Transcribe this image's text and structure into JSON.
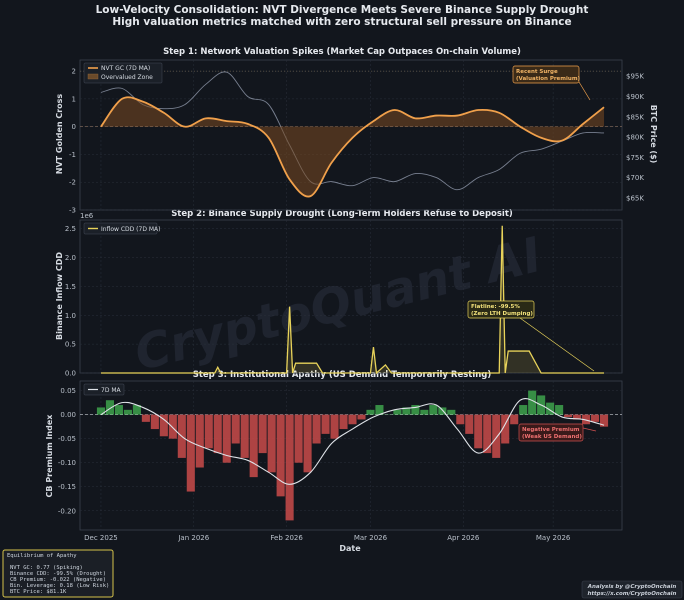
{
  "figure": {
    "title": "Low-Velocity Consolidation: NVT Divergence Meets Severe Binance Supply Drought",
    "subtitle": "High valuation metrics matched with zero structural sell pressure on Binance",
    "watermark": "CryptoQuant AI",
    "credit_line1": "Analysis by @CryptoOnchain",
    "credit_line2": "https://x.com/CryptoOnchain",
    "xlabel": "Date",
    "colors": {
      "background": "#12161d",
      "nvt": "#f0a04b",
      "btc": "#8a92a3",
      "cdd": "#e8d35a",
      "cb_pos": "#3c9b4a",
      "cb_neg": "#c04848",
      "grid": "#2a303b"
    }
  },
  "info_box": {
    "title": "Equilibrium of Apathy",
    "lines": [
      "NVT GC:         0.77 (Spiking)",
      "Binance CDD:  -99.5% (Drought)",
      "CB Premium:   -0.022 (Negative)",
      "Bin. Leverage: 0.18 (Low Risk)",
      "BTC Price:    $81.1K"
    ]
  },
  "chart_data": [
    {
      "type": "area",
      "title": "Step 1: Network Valuation Spikes (Market Cap Outpaces On-chain Volume)",
      "ylabel": "NVT Golden Cross",
      "y2label": "BTC Price ($)",
      "ylim": [
        -3,
        2.4
      ],
      "y2lim": [
        62,
        99
      ],
      "yticks": [
        -3,
        -2,
        -1,
        0,
        1,
        2
      ],
      "y2ticks": [
        "$65K",
        "$70K",
        "$75K",
        "$80K",
        "$85K",
        "$90K",
        "$95K"
      ],
      "y2tick_values": [
        65,
        70,
        75,
        80,
        85,
        90,
        95
      ],
      "overvalued_level": 2.0,
      "legend_position": "top-left",
      "series": [
        {
          "name": "NVT GC (7D MA)",
          "type": "line",
          "x": [
            "2025-12-01",
            "2025-12-08",
            "2025-12-15",
            "2025-12-22",
            "2025-12-29",
            "2026-01-05",
            "2026-01-12",
            "2026-01-19",
            "2026-01-26",
            "2026-02-02",
            "2026-02-09",
            "2026-02-16",
            "2026-02-23",
            "2026-03-02",
            "2026-03-09",
            "2026-03-16",
            "2026-03-23",
            "2026-03-30",
            "2026-04-06",
            "2026-04-13",
            "2026-04-20",
            "2026-04-27",
            "2026-05-04",
            "2026-05-11",
            "2026-05-18"
          ],
          "values": [
            0.0,
            1.0,
            0.9,
            0.5,
            0.0,
            0.3,
            0.2,
            0.1,
            -0.4,
            -1.9,
            -2.5,
            -1.3,
            -0.4,
            0.2,
            0.6,
            0.3,
            0.4,
            0.4,
            0.6,
            0.5,
            0.0,
            -0.4,
            -0.5,
            0.1,
            0.7
          ]
        },
        {
          "name": "",
          "type": "line",
          "axis": "right",
          "unit": "$K",
          "x": [
            "2025-12-01",
            "2025-12-08",
            "2025-12-15",
            "2025-12-22",
            "2025-12-29",
            "2026-01-05",
            "2026-01-12",
            "2026-01-19",
            "2026-01-26",
            "2026-02-02",
            "2026-02-09",
            "2026-02-16",
            "2026-02-23",
            "2026-03-02",
            "2026-03-09",
            "2026-03-16",
            "2026-03-23",
            "2026-03-30",
            "2026-04-06",
            "2026-04-13",
            "2026-04-20",
            "2026-04-27",
            "2026-05-04",
            "2026-05-11",
            "2026-05-18"
          ],
          "values": [
            91,
            92,
            88,
            87,
            88,
            93,
            96,
            90,
            88,
            78,
            69,
            69,
            68,
            70,
            69,
            71,
            70,
            67,
            70,
            72,
            76,
            77,
            79,
            81,
            81
          ]
        }
      ],
      "legend_extra": "Overvalued Zone",
      "annotation": {
        "text_line1": "Recent Surge",
        "text_line2": "(Valuation Premium)",
        "x": "2026-05-16",
        "y": 0.7
      }
    },
    {
      "type": "line",
      "title": "Step 2: Binance Supply Drought (Long-Term Holders Refuse to Deposit)",
      "ylabel": "Binance Inflow CDD",
      "yscale_label": "1e6",
      "ylim": [
        0,
        2.65
      ],
      "yticks": [
        "0.0",
        "0.5",
        "1.0",
        "1.5",
        "2.0",
        "2.5"
      ],
      "ytick_values": [
        0,
        0.5,
        1.0,
        1.5,
        2.0,
        2.5
      ],
      "legend_position": "top-left",
      "series": [
        {
          "name": "Inflow CDD (7D MA)",
          "x": [
            "2025-12-01",
            "2026-01-08",
            "2026-01-09",
            "2026-01-10",
            "2026-02-01",
            "2026-02-02",
            "2026-02-03",
            "2026-02-04",
            "2026-02-11",
            "2026-02-13",
            "2026-03-01",
            "2026-03-02",
            "2026-03-03",
            "2026-03-06",
            "2026-03-08",
            "2026-04-13",
            "2026-04-14",
            "2026-04-15",
            "2026-04-16",
            "2026-04-23",
            "2026-04-27",
            "2026-05-18"
          ],
          "values": [
            0.0,
            0.0,
            0.1,
            0.0,
            0.0,
            1.15,
            0.0,
            0.17,
            0.17,
            0.0,
            0.0,
            0.45,
            0.0,
            0.14,
            0.0,
            0.0,
            2.55,
            0.0,
            0.38,
            0.38,
            0.0,
            0.0
          ]
        }
      ],
      "annotation": {
        "text_line1": "Flatline: -99.5%",
        "text_line2": "(Zero LTH Dumping)",
        "x": "2026-05-14",
        "y": 0.02
      }
    },
    {
      "type": "bar",
      "title": "Step 3: Institutional Apathy (US Demand Temporarily Resting)",
      "ylabel": "CB Premium Index",
      "xlabel": "Date",
      "ylim": [
        -0.24,
        0.07
      ],
      "yticks": [
        "-0.20",
        "-0.15",
        "-0.10",
        "-0.05",
        "0.00",
        "0.05"
      ],
      "ytick_values": [
        -0.2,
        -0.15,
        -0.1,
        -0.05,
        0.0,
        0.05
      ],
      "xticks": [
        "Dec 2025",
        "Jan 2026",
        "Feb 2026",
        "Mar 2026",
        "Apr 2026",
        "May 2026"
      ],
      "xtick_dates": [
        "2025-12-01",
        "2026-01-01",
        "2026-02-01",
        "2026-03-01",
        "2026-04-01",
        "2026-05-01"
      ],
      "legend_position": "top-left",
      "series": [
        {
          "name": "7D MA",
          "type": "line",
          "x": [
            "2025-12-01",
            "2025-12-08",
            "2025-12-15",
            "2025-12-22",
            "2025-12-29",
            "2026-01-05",
            "2026-01-12",
            "2026-01-19",
            "2026-01-26",
            "2026-02-02",
            "2026-02-09",
            "2026-02-16",
            "2026-02-23",
            "2026-03-02",
            "2026-03-09",
            "2026-03-16",
            "2026-03-23",
            "2026-03-30",
            "2026-04-06",
            "2026-04-13",
            "2026-04-20",
            "2026-04-27",
            "2026-05-04",
            "2026-05-11",
            "2026-05-18"
          ],
          "values": [
            0.0,
            0.025,
            0.015,
            -0.01,
            -0.05,
            -0.07,
            -0.085,
            -0.095,
            -0.12,
            -0.145,
            -0.12,
            -0.06,
            -0.03,
            -0.005,
            0.01,
            0.015,
            0.02,
            -0.03,
            -0.08,
            -0.04,
            0.03,
            0.02,
            -0.005,
            -0.01,
            -0.022
          ]
        },
        {
          "name": "",
          "type": "bar",
          "unit": "daily",
          "x": [
            "2025-12-01",
            "2025-12-04",
            "2025-12-07",
            "2025-12-10",
            "2025-12-13",
            "2025-12-16",
            "2025-12-19",
            "2025-12-22",
            "2025-12-25",
            "2025-12-28",
            "2025-12-31",
            "2026-01-03",
            "2026-01-06",
            "2026-01-09",
            "2026-01-12",
            "2026-01-15",
            "2026-01-18",
            "2026-01-21",
            "2026-01-24",
            "2026-01-27",
            "2026-01-30",
            "2026-02-02",
            "2026-02-05",
            "2026-02-08",
            "2026-02-11",
            "2026-02-14",
            "2026-02-17",
            "2026-02-20",
            "2026-02-23",
            "2026-02-26",
            "2026-03-01",
            "2026-03-04",
            "2026-03-07",
            "2026-03-10",
            "2026-03-13",
            "2026-03-16",
            "2026-03-19",
            "2026-03-22",
            "2026-03-25",
            "2026-03-28",
            "2026-03-31",
            "2026-04-03",
            "2026-04-06",
            "2026-04-09",
            "2026-04-12",
            "2026-04-15",
            "2026-04-18",
            "2026-04-21",
            "2026-04-24",
            "2026-04-27",
            "2026-04-30",
            "2026-05-03",
            "2026-05-06",
            "2026-05-09",
            "2026-05-12",
            "2026-05-15",
            "2026-05-18"
          ],
          "values": [
            0.015,
            0.03,
            0.02,
            0.01,
            0.02,
            -0.015,
            -0.03,
            -0.045,
            -0.05,
            -0.09,
            -0.16,
            -0.11,
            -0.07,
            -0.08,
            -0.1,
            -0.06,
            -0.09,
            -0.13,
            -0.08,
            -0.12,
            -0.17,
            -0.22,
            -0.1,
            -0.12,
            -0.06,
            -0.04,
            -0.05,
            -0.03,
            -0.02,
            -0.01,
            0.01,
            0.02,
            0.0,
            0.01,
            0.015,
            0.02,
            0.01,
            0.02,
            0.015,
            0.01,
            -0.02,
            -0.04,
            -0.07,
            -0.08,
            -0.09,
            -0.06,
            -0.02,
            0.02,
            0.05,
            0.04,
            0.025,
            0.02,
            -0.005,
            -0.01,
            -0.02,
            -0.015,
            -0.025
          ]
        }
      ],
      "annotation": {
        "text_line1": "Negative Premium",
        "text_line2": "(Weak US Demand)",
        "x": "2026-05-16",
        "y": -0.022
      }
    }
  ]
}
